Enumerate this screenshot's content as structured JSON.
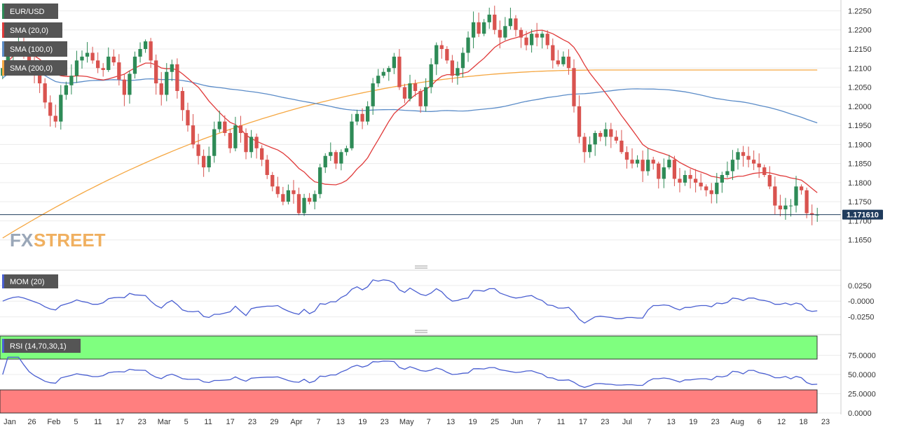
{
  "symbol": "EUR/USD",
  "legends": {
    "sma20": "SMA (20,0)",
    "sma100": "SMA (100,0)",
    "sma200": "SMA (200,0)",
    "mom": "MOM (20)",
    "rsi": "RSI (14,70,30,1)"
  },
  "colors": {
    "bull": "#2e8b57",
    "bear": "#d9534f",
    "sma20": "#e03a3a",
    "sma100": "#5b8cc8",
    "sma200": "#f5a742",
    "mom_line": "#4a5fd1",
    "rsi_line": "#4a5fd1",
    "rsi_over": "#7fff7f",
    "rsi_under": "#ff7f7f",
    "price_tag": "#1f3b5c",
    "watermark_fx": "#9aa7b8",
    "watermark_street": "#f0b060"
  },
  "watermark": {
    "fx": "FX",
    "street": "STREET"
  },
  "current_price_label": "1.171610",
  "chart_data": [
    {
      "type": "candlestick",
      "title": "EUR/USD",
      "ylim": [
        1.16,
        1.226
      ],
      "price_ticks": [
        "1.2250",
        "1.2200",
        "1.2150",
        "1.2100",
        "1.2050",
        "1.2000",
        "1.1950",
        "1.1900",
        "1.1850",
        "1.1800",
        "1.1750",
        "1.1700",
        "1.1650"
      ],
      "x_ticks": [
        "Jan",
        "26",
        "Feb",
        "5",
        "11",
        "17",
        "23",
        "Mar",
        "5",
        "11",
        "17",
        "23",
        "29",
        "Apr",
        "7",
        "13",
        "19",
        "23",
        "May",
        "7",
        "13",
        "19",
        "25",
        "Jun",
        "7",
        "11",
        "17",
        "23",
        "Jul",
        "7",
        "13",
        "19",
        "23",
        "Aug",
        "6",
        "12",
        "18",
        "23"
      ],
      "current_price": 1.17161,
      "close": [
        1.21,
        1.2135,
        1.216,
        1.217,
        1.215,
        1.212,
        1.209,
        1.206,
        1.201,
        1.1975,
        1.196,
        1.203,
        1.2055,
        1.208,
        1.212,
        1.213,
        1.214,
        1.212,
        1.21,
        1.2095,
        1.213,
        1.2115,
        1.207,
        1.203,
        1.2085,
        1.213,
        1.215,
        1.217,
        1.212,
        1.206,
        1.203,
        1.209,
        1.211,
        1.204,
        1.199,
        1.195,
        1.19,
        1.187,
        1.184,
        1.187,
        1.194,
        1.196,
        1.193,
        1.189,
        1.195,
        1.193,
        1.188,
        1.192,
        1.189,
        1.186,
        1.182,
        1.179,
        1.177,
        1.175,
        1.178,
        1.177,
        1.172,
        1.176,
        1.175,
        1.177,
        1.184,
        1.187,
        1.188,
        1.185,
        1.188,
        1.189,
        1.196,
        1.198,
        1.196,
        1.2,
        1.206,
        1.208,
        1.209,
        1.21,
        1.213,
        1.205,
        1.202,
        1.206,
        1.204,
        1.2,
        1.205,
        1.211,
        1.216,
        1.215,
        1.212,
        1.208,
        1.21,
        1.214,
        1.218,
        1.222,
        1.219,
        1.222,
        1.224,
        1.22,
        1.218,
        1.221,
        1.223,
        1.22,
        1.218,
        1.216,
        1.219,
        1.218,
        1.219,
        1.216,
        1.212,
        1.211,
        1.213,
        1.21,
        1.2,
        1.192,
        1.188,
        1.19,
        1.193,
        1.192,
        1.194,
        1.192,
        1.191,
        1.188,
        1.186,
        1.185,
        1.186,
        1.183,
        1.186,
        1.185,
        1.181,
        1.184,
        1.186,
        1.181,
        1.18,
        1.182,
        1.181,
        1.18,
        1.179,
        1.178,
        1.177,
        1.18,
        1.182,
        1.183,
        1.186,
        1.188,
        1.187,
        1.186,
        1.185,
        1.184,
        1.182,
        1.179,
        1.174,
        1.173,
        1.174,
        1.174,
        1.179,
        1.178,
        1.172,
        1.1716,
        1.1716
      ]
    },
    {
      "type": "line",
      "title": "MOM (20)",
      "ylim": [
        -0.04,
        0.045
      ],
      "ticks": [
        "0.0250",
        "-0.0000",
        "-0.0250"
      ]
    },
    {
      "type": "line",
      "title": "RSI (14,70,30,1)",
      "ylim": [
        0,
        100
      ],
      "ticks": [
        "75.0000",
        "50.0000",
        "25.0000",
        "0.0000"
      ],
      "overbought": 70,
      "oversold": 30
    }
  ]
}
